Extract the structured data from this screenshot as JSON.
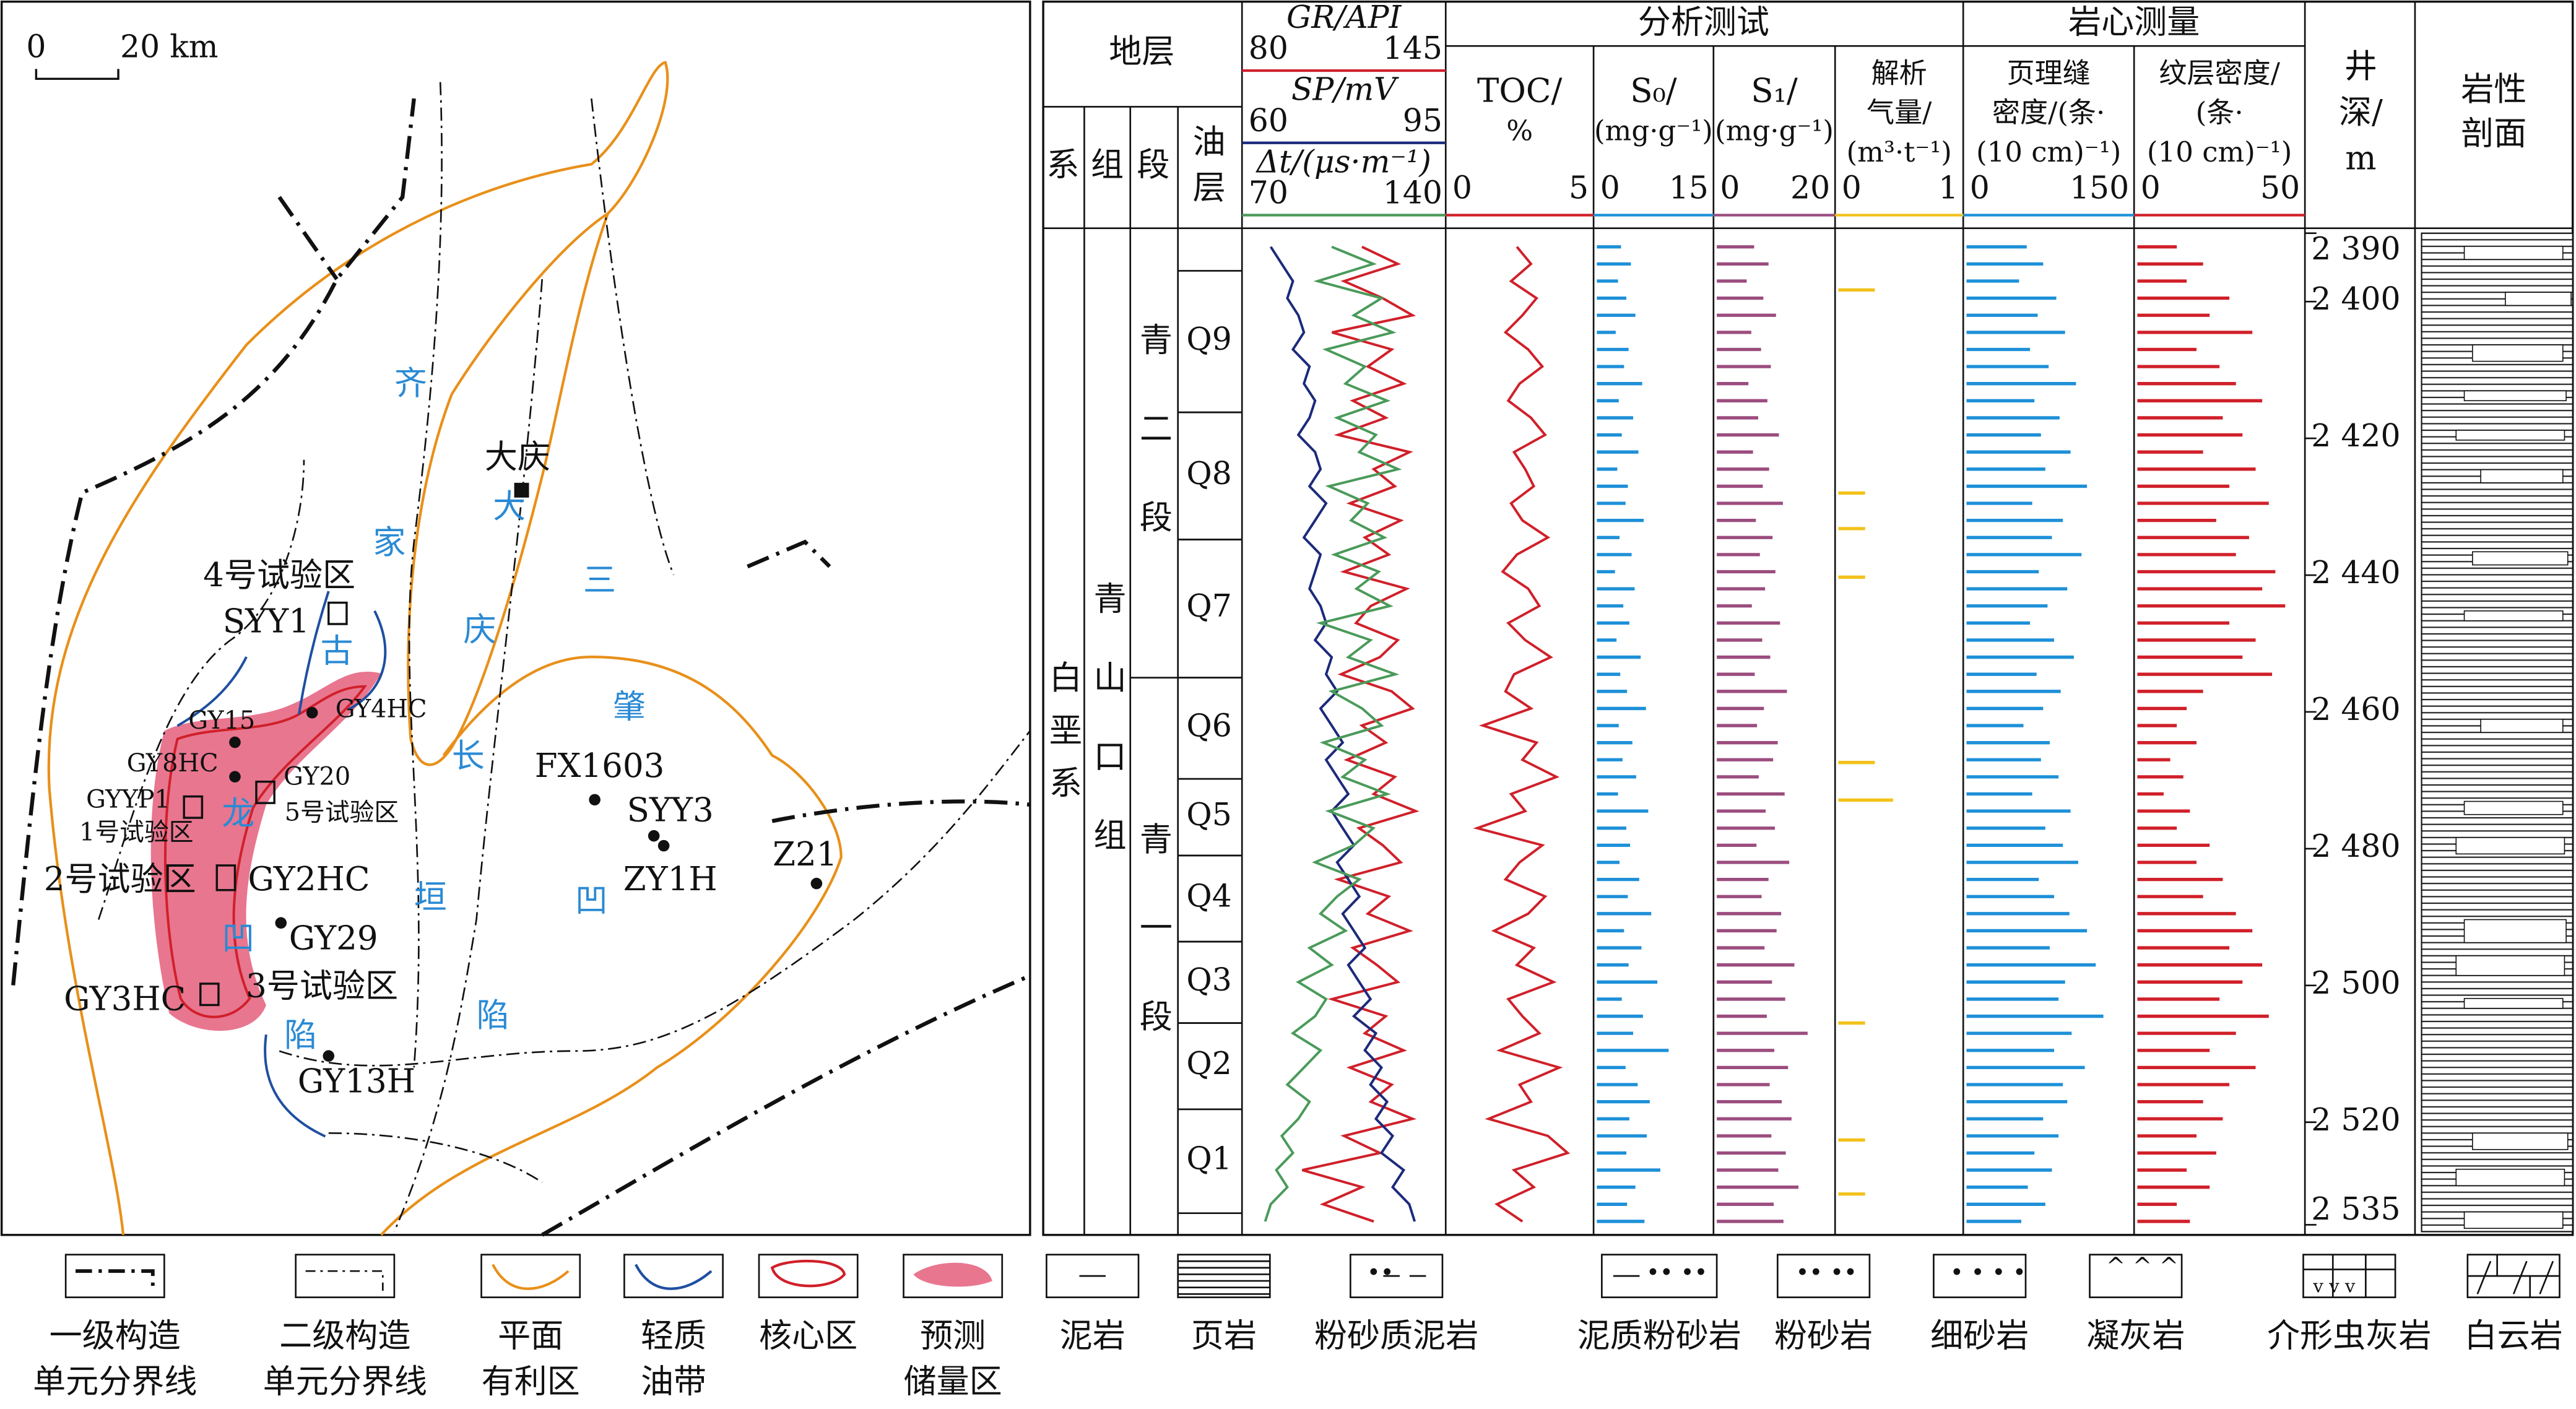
{
  "map": {
    "scale": [
      "0",
      "20 km"
    ],
    "units": [
      "齐",
      "家",
      "古",
      "龙",
      "凹",
      "陷",
      "大",
      "庆",
      "长",
      "垣",
      "三",
      "肇",
      "凹",
      "陷"
    ],
    "labels": [
      "大庆",
      "4号试验区",
      "SYY1",
      "GY15",
      "GY4HC",
      "GY8HC",
      "GY20",
      "GYYP1",
      "1号试验区",
      "5号试验区",
      "2号试验区",
      "GY2HC",
      "GY29",
      "GY3HC",
      "3号试验区",
      "GY13H",
      "FX1603",
      "SYY3",
      "ZY1H",
      "Z21"
    ]
  },
  "well_log": {
    "strata": {
      "title": "地层",
      "columns": [
        "系",
        "组",
        "段"
      ],
      "oil_column": [
        "油",
        "层"
      ],
      "system": "白垩系",
      "formation": "青山口组",
      "members": [
        {
          "name": "青二段",
          "top": 2390,
          "base": 2455
        },
        {
          "name": "青一段",
          "top": 2455,
          "base": 2536
        }
      ],
      "layers": [
        {
          "name": "Q9",
          "top": 2395.5,
          "base": 2416.2
        },
        {
          "name": "Q8",
          "top": 2416.2,
          "base": 2434.8
        },
        {
          "name": "Q7",
          "top": 2434.8,
          "base": 2455
        },
        {
          "name": "Q6",
          "top": 2455,
          "base": 2469.8
        },
        {
          "name": "Q5",
          "top": 2469.8,
          "base": 2481
        },
        {
          "name": "Q4",
          "top": 2481,
          "base": 2493.6
        },
        {
          "name": "Q3",
          "top": 2493.6,
          "base": 2505.5
        },
        {
          "name": "Q2",
          "top": 2505.5,
          "base": 2518.1
        },
        {
          "name": "Q1",
          "top": 2518.1,
          "base": 2533.3
        }
      ]
    },
    "depth_label": [
      "井",
      "深/",
      "m"
    ],
    "depth_lim": [
      2390,
      2536
    ],
    "depth_ticks": [
      {
        "value": 2390,
        "label": "2 390"
      },
      {
        "value": 2400,
        "label": "2 400"
      },
      {
        "value": 2420,
        "label": "2 420"
      },
      {
        "value": 2440,
        "label": "2 440"
      },
      {
        "value": 2460,
        "label": "2 460"
      },
      {
        "value": 2480,
        "label": "2 480"
      },
      {
        "value": 2500,
        "label": "2 500"
      },
      {
        "value": 2520,
        "label": "2 520"
      },
      {
        "value": 2535,
        "label": "2 535"
      }
    ],
    "sample_depths": [
      2392,
      2394.5,
      2397,
      2399.5,
      2402,
      2404.5,
      2407,
      2409.5,
      2412,
      2414.5,
      2417,
      2419.5,
      2422,
      2424.5,
      2427,
      2429.5,
      2432,
      2434.5,
      2437,
      2439.5,
      2442,
      2444.5,
      2447,
      2449.5,
      2452,
      2454.5,
      2457,
      2459.5,
      2462,
      2464.5,
      2467,
      2469.5,
      2472,
      2474.5,
      2477,
      2479.5,
      2482,
      2484.5,
      2487,
      2489.5,
      2492,
      2494.5,
      2497,
      2499.5,
      2502,
      2504.5,
      2507,
      2509.5,
      2512,
      2514.5,
      2517,
      2519.5,
      2522,
      2524.5,
      2527,
      2529.5,
      2532,
      2534.5
    ],
    "logs": {
      "type": "line",
      "curves": [
        {
          "name": "GR/API",
          "color": "#d0202a",
          "xlim": [
            80,
            145
          ],
          "values": [
            118,
            130,
            112,
            125,
            135,
            108,
            128,
            120,
            132,
            115,
            126,
            110,
            134,
            122,
            129,
            114,
            131,
            119,
            127,
            112,
            133,
            121,
            116,
            130,
            124,
            111,
            128,
            135,
            118,
            126,
            113,
            129,
            122,
            136,
            117,
            125,
            131,
            110,
            127,
            120,
            134,
            115,
            123,
            130,
            108,
            126,
            119,
            132,
            114,
            128,
            121,
            135,
            112,
            124,
            98,
            118,
            105,
            122
          ]
        },
        {
          "name": "SP/mV",
          "color": "#1c2a7a",
          "xlim": [
            60,
            95
          ],
          "values": [
            64,
            66,
            68,
            67,
            69,
            70,
            68,
            71,
            70,
            72,
            71,
            69,
            72,
            73,
            71,
            74,
            72,
            70,
            73,
            72,
            71,
            73,
            74,
            72,
            75,
            74,
            76,
            73,
            75,
            77,
            74,
            76,
            78,
            75,
            77,
            79,
            76,
            78,
            80,
            77,
            79,
            81,
            78,
            80,
            82,
            79,
            83,
            81,
            84,
            82,
            85,
            83,
            86,
            84,
            88,
            86,
            89,
            90
          ]
        },
        {
          "name": "Δt/(μs·m⁻¹)",
          "color": "#4a9a5a",
          "xlim": [
            70,
            140
          ],
          "values": [
            100,
            115,
            95,
            118,
            108,
            122,
            98,
            112,
            105,
            120,
            102,
            116,
            110,
            124,
            99,
            113,
            107,
            119,
            101,
            117,
            109,
            121,
            96,
            114,
            106,
            123,
            100,
            111,
            118,
            97,
            112,
            104,
            120,
            99,
            115,
            108,
            94,
            110,
            102,
            96,
            105,
            92,
            100,
            88,
            98,
            94,
            86,
            96,
            90,
            84,
            92,
            88,
            82,
            86,
            80,
            84,
            78,
            76
          ]
        }
      ]
    },
    "analysis": {
      "title": "分析测试",
      "tracks": [
        {
          "type": "line",
          "name": [
            "TOC/",
            "%"
          ],
          "color": "#d0202a",
          "xlim": [
            0,
            5
          ],
          "values": [
            2.4,
            2.9,
            2.2,
            3.1,
            2.6,
            2.0,
            2.8,
            3.3,
            2.5,
            2.1,
            2.9,
            3.4,
            2.3,
            2.7,
            3.0,
            2.2,
            2.6,
            3.5,
            2.4,
            1.9,
            2.8,
            3.2,
            2.1,
            2.7,
            3.6,
            2.3,
            2.0,
            2.9,
            1.2,
            3.1,
            2.6,
            3.8,
            2.2,
            2.7,
            1.0,
            3.3,
            2.5,
            2.0,
            3.4,
            2.8,
            1.6,
            3.0,
            2.4,
            3.7,
            2.1,
            2.6,
            3.2,
            1.8,
            3.9,
            2.5,
            2.9,
            1.4,
            3.5,
            4.2,
            2.3,
            3.0,
            1.7,
            2.6
          ]
        },
        {
          "type": "bar",
          "name": [
            "S₀/",
            "(mg·g⁻¹)"
          ],
          "color": "#1e90d8",
          "xlim": [
            0,
            15
          ],
          "values": [
            3.2,
            4.5,
            2.8,
            3.9,
            5.1,
            2.5,
            4.2,
            3.6,
            6.0,
            2.9,
            4.8,
            3.3,
            5.5,
            2.7,
            4.1,
            3.8,
            6.2,
            3.0,
            4.6,
            2.4,
            5.0,
            3.5,
            4.3,
            2.6,
            5.8,
            3.1,
            4.0,
            6.5,
            2.9,
            4.7,
            3.4,
            5.2,
            2.8,
            6.8,
            3.9,
            4.4,
            3.0,
            5.6,
            4.1,
            7.2,
            3.6,
            5.9,
            4.2,
            8.0,
            3.3,
            6.1,
            4.8,
            9.5,
            3.8,
            5.4,
            7.0,
            4.3,
            6.6,
            3.9,
            8.4,
            5.1,
            4.0,
            6.3
          ]
        },
        {
          "type": "bar",
          "name": [
            "S₁/",
            "(mg·g⁻¹)"
          ],
          "color": "#9b4d7e",
          "xlim": [
            0,
            20
          ],
          "values": [
            6.5,
            9.0,
            5.2,
            8.1,
            10.3,
            6.0,
            7.7,
            9.4,
            5.5,
            8.8,
            7.2,
            10.8,
            6.3,
            9.1,
            8.0,
            11.5,
            6.8,
            9.7,
            7.5,
            10.2,
            8.4,
            6.1,
            11.0,
            7.9,
            9.3,
            6.6,
            12.2,
            8.2,
            7.0,
            10.6,
            9.8,
            7.3,
            11.8,
            8.5,
            10.1,
            6.9,
            12.6,
            9.0,
            7.8,
            11.2,
            10.4,
            8.3,
            13.5,
            9.6,
            11.9,
            8.7,
            15.8,
            10.0,
            12.4,
            9.2,
            11.3,
            13.0,
            9.5,
            12.0,
            10.7,
            14.2,
            9.9,
            11.6
          ]
        },
        {
          "type": "bar",
          "name": [
            "解析",
            "气量/",
            "(m³·t⁻¹)"
          ],
          "color": "#f2c21b",
          "xlim": [
            0,
            1
          ],
          "depths": [
            2398.3,
            2428,
            2433.2,
            2440.3,
            2467.4,
            2472.9,
            2505.5,
            2522.6,
            2530.5
          ],
          "values": [
            0.3,
            0.22,
            0.22,
            0.22,
            0.3,
            0.45,
            0.22,
            0.22,
            0.22
          ]
        }
      ]
    },
    "core": {
      "title": "岩心测量",
      "tracks": [
        {
          "type": "bar",
          "name": [
            "页理缝",
            "密度/(条·",
            "(10 cm)⁻¹)"
          ],
          "color": "#1e90d8",
          "xlim": [
            0,
            150
          ],
          "values": [
            55,
            70,
            48,
            82,
            65,
            90,
            58,
            75,
            100,
            62,
            85,
            68,
            95,
            72,
            110,
            60,
            88,
            78,
            105,
            66,
            92,
            74,
            58,
            80,
            98,
            64,
            86,
            70,
            52,
            76,
            68,
            84,
            60,
            95,
            72,
            88,
            102,
            66,
            80,
            94,
            110,
            76,
            118,
            90,
            84,
            125,
            96,
            80,
            108,
            88,
            92,
            70,
            84,
            62,
            78,
            56,
            72,
            50
          ]
        },
        {
          "type": "bar",
          "name": [
            "纹层密度/",
            "(条·",
            "(10 cm)⁻¹)"
          ],
          "color": "#d0202a",
          "xlim": [
            0,
            50
          ],
          "values": [
            12,
            20,
            15,
            28,
            22,
            35,
            18,
            25,
            30,
            38,
            26,
            32,
            20,
            36,
            28,
            40,
            24,
            34,
            30,
            42,
            38,
            45,
            28,
            36,
            32,
            41,
            20,
            15,
            12,
            18,
            10,
            14,
            8,
            16,
            12,
            22,
            18,
            26,
            20,
            30,
            35,
            28,
            38,
            32,
            25,
            40,
            30,
            22,
            36,
            28,
            20,
            26,
            18,
            24,
            15,
            22,
            12,
            16
          ]
        }
      ]
    },
    "lithology_label": [
      "岩性",
      "剖面"
    ]
  },
  "legend": {
    "map": [
      [
        "一级构造",
        "单元分界线"
      ],
      [
        "二级构造",
        "单元分界线"
      ],
      [
        "平面",
        "有利区"
      ],
      [
        "轻质",
        "油带"
      ],
      [
        "核心区"
      ],
      [
        "预测",
        "储量区"
      ]
    ],
    "lithology": [
      "泥岩",
      "页岩",
      "粉砂质泥岩",
      "泥质粉砂岩",
      "粉砂岩",
      "细砂岩",
      "凝灰岩",
      "介形虫灰岩",
      "白云岩"
    ]
  }
}
